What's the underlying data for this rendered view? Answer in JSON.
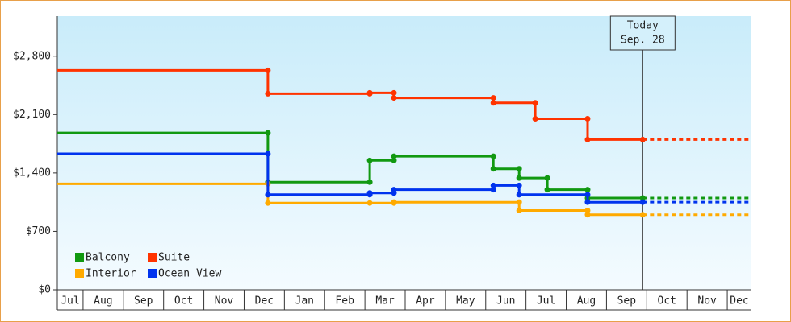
{
  "chart_data": {
    "type": "step-line",
    "xlim": [
      0.36,
      17.6
    ],
    "xticks": [
      {
        "value": 0,
        "label": "Jul"
      },
      {
        "value": 1,
        "label": "Aug"
      },
      {
        "value": 2,
        "label": "Sep"
      },
      {
        "value": 3,
        "label": "Oct"
      },
      {
        "value": 4,
        "label": "Nov"
      },
      {
        "value": 5,
        "label": "Dec"
      },
      {
        "value": 6,
        "label": "Jan"
      },
      {
        "value": 7,
        "label": "Feb"
      },
      {
        "value": 8,
        "label": "Mar"
      },
      {
        "value": 9,
        "label": "Apr"
      },
      {
        "value": 10,
        "label": "May"
      },
      {
        "value": 11,
        "label": "Jun"
      },
      {
        "value": 12,
        "label": "Jul"
      },
      {
        "value": 13,
        "label": "Aug"
      },
      {
        "value": 14,
        "label": "Sep"
      },
      {
        "value": 15,
        "label": "Oct"
      },
      {
        "value": 16,
        "label": "Nov"
      },
      {
        "value": 17,
        "label": "Dec"
      }
    ],
    "ylim": [
      0,
      3280
    ],
    "yticks": [
      {
        "value": 0,
        "label": "$0"
      },
      {
        "value": 700,
        "label": "$700"
      },
      {
        "value": 1400,
        "label": "$1,400"
      },
      {
        "value": 2100,
        "label": "$2,100"
      },
      {
        "value": 2800,
        "label": "$2,800"
      }
    ],
    "today": {
      "x": 14.9,
      "label": [
        "Today",
        "Sep. 28"
      ]
    },
    "series": [
      {
        "name": "Balcony",
        "color": "#119911",
        "x": [
          0.36,
          5.59,
          8.12,
          8.72,
          11.19,
          11.83,
          12.53,
          13.53,
          14.9
        ],
        "values": [
          1880,
          1290,
          1550,
          1600,
          1450,
          1340,
          1200,
          1100,
          1100
        ]
      },
      {
        "name": "Suite",
        "color": "#ff3300",
        "x": [
          0.36,
          5.59,
          8.12,
          8.72,
          11.19,
          12.23,
          13.53,
          14.9
        ],
        "values": [
          2630,
          2350,
          2360,
          2300,
          2240,
          2050,
          1800,
          1800
        ]
      },
      {
        "name": "Interior",
        "color": "#ffaa00",
        "x": [
          0.36,
          5.59,
          8.12,
          8.72,
          11.83,
          13.53,
          14.9
        ],
        "values": [
          1270,
          1040,
          1040,
          1050,
          950,
          900,
          900
        ]
      },
      {
        "name": "Ocean View",
        "color": "#0033ee",
        "x": [
          0.36,
          5.59,
          8.12,
          8.72,
          11.19,
          11.83,
          13.53,
          14.9
        ],
        "values": [
          1630,
          1140,
          1160,
          1200,
          1250,
          1140,
          1050,
          1050
        ]
      }
    ]
  }
}
